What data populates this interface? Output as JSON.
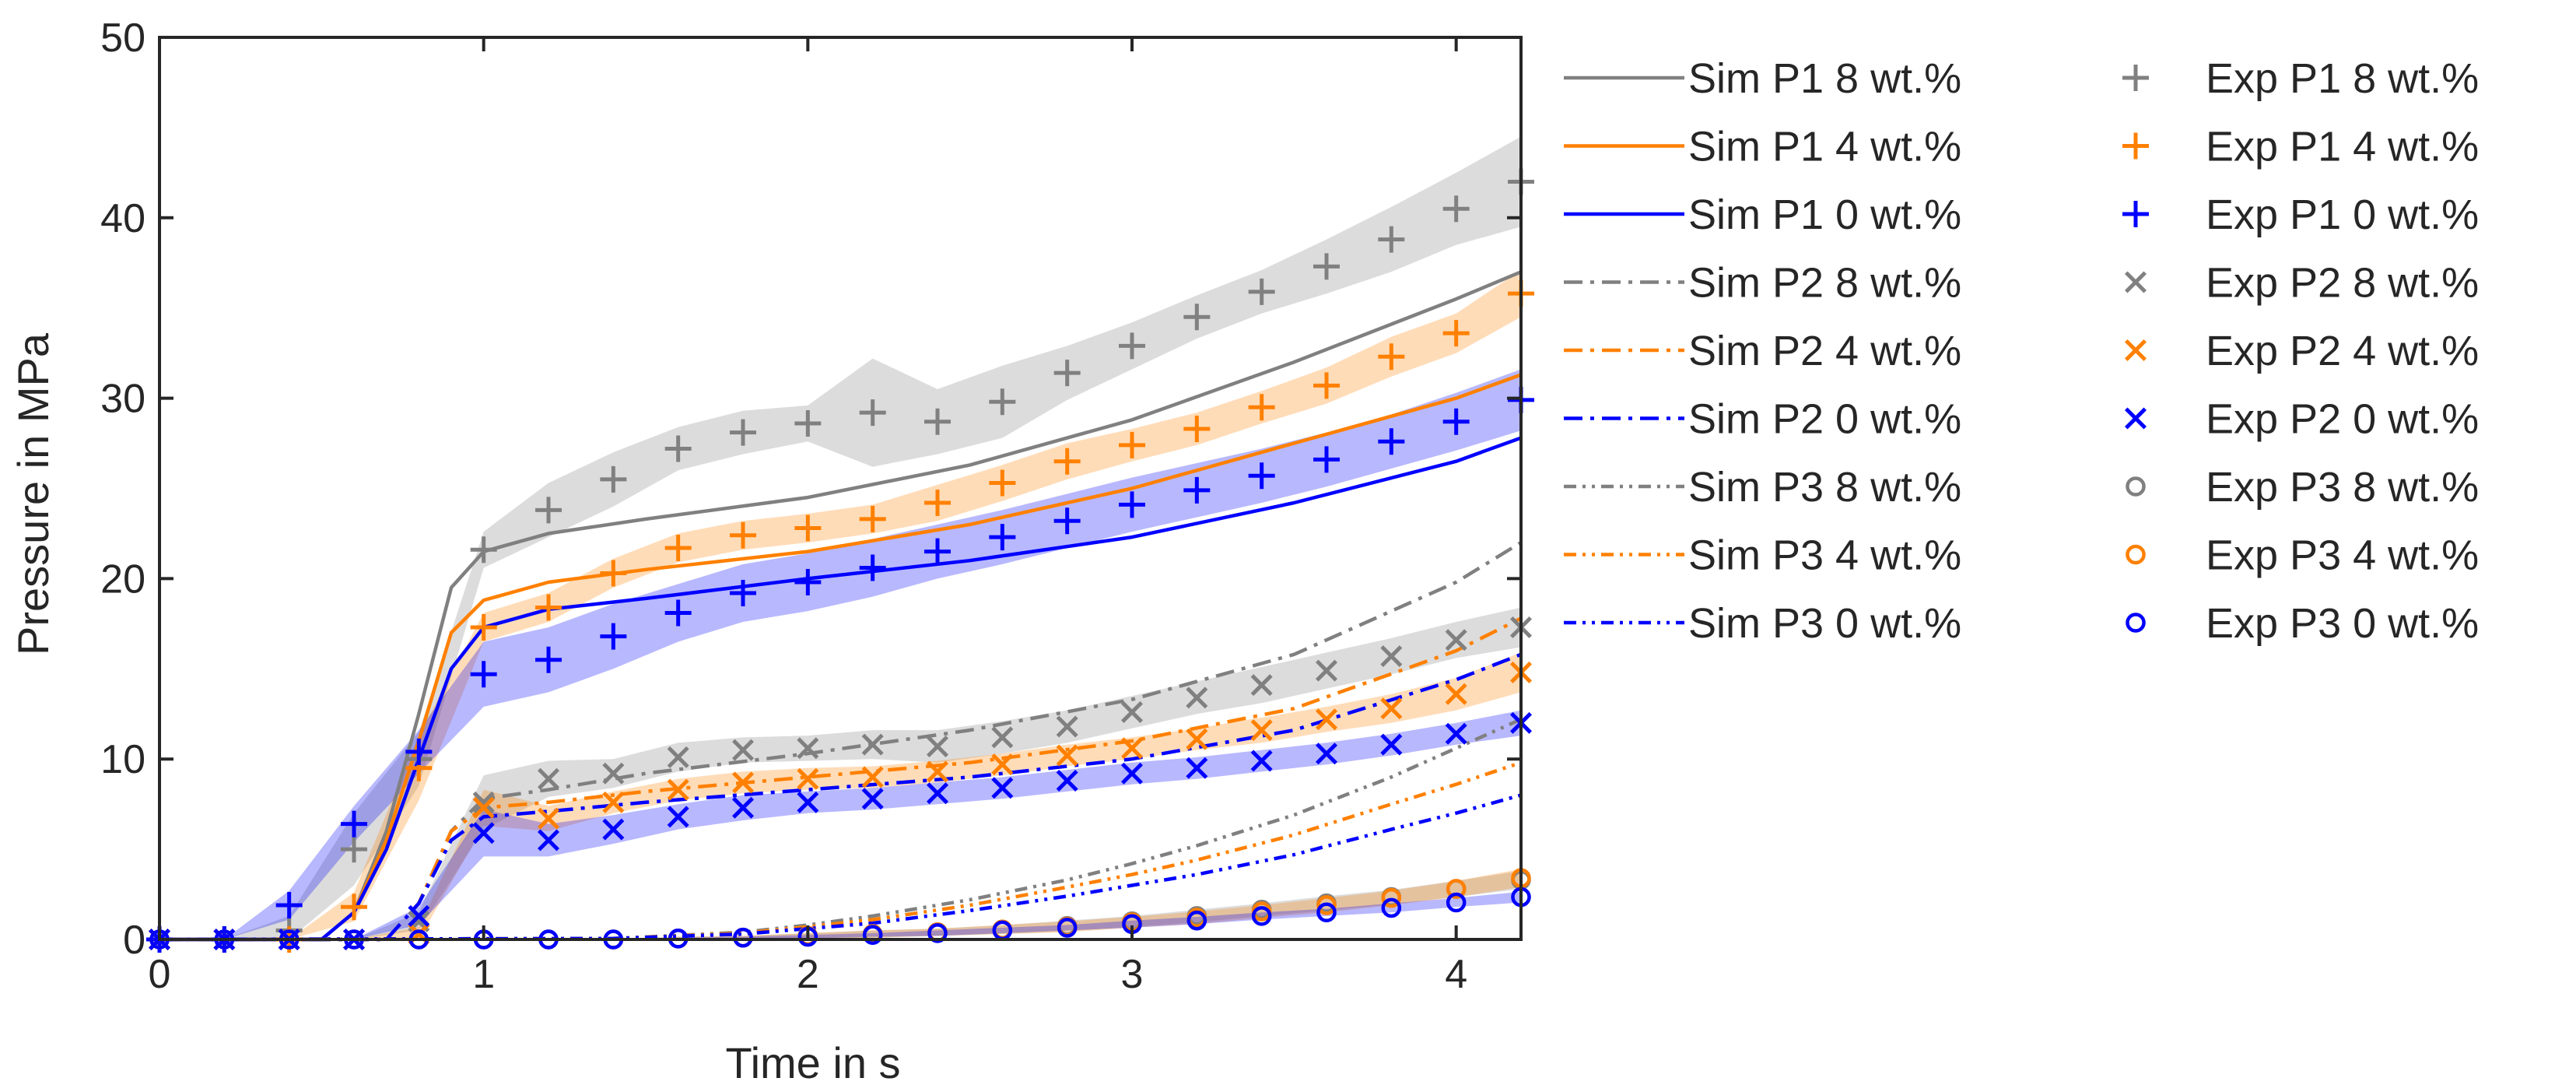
{
  "chart_data": {
    "type": "line",
    "xlabel": "Time in s",
    "ylabel": "Pressure in MPa",
    "xlim": [
      0,
      4.2
    ],
    "ylim": [
      0,
      50
    ],
    "xticks": [
      0,
      1,
      2,
      3,
      4
    ],
    "yticks": [
      0,
      10,
      20,
      30,
      40,
      50
    ],
    "grid": false,
    "legend_position": "outside-right",
    "colors": {
      "8": "#808080",
      "4": "#ff8000",
      "0": "#0000ff"
    },
    "simulation": [
      {
        "name": "Sim P1 8 wt.%",
        "color": "8",
        "dash": "solid",
        "x": [
          0,
          0.5,
          0.6,
          0.7,
          0.8,
          0.9,
          1.0,
          1.2,
          1.5,
          2.0,
          2.5,
          3.0,
          3.5,
          4.0,
          4.2
        ],
        "y": [
          0,
          0,
          1.5,
          6,
          12.5,
          19.5,
          21.5,
          22.5,
          23.3,
          24.5,
          26.3,
          28.8,
          32.0,
          35.5,
          37.0
        ]
      },
      {
        "name": "Sim P1 4 wt.%",
        "color": "4",
        "dash": "solid",
        "x": [
          0,
          0.5,
          0.6,
          0.7,
          0.8,
          0.9,
          1.0,
          1.2,
          1.5,
          2.0,
          2.5,
          3.0,
          3.5,
          4.0,
          4.2
        ],
        "y": [
          0,
          0,
          1.5,
          5.5,
          11,
          17,
          18.8,
          19.8,
          20.5,
          21.5,
          23.0,
          25.0,
          27.5,
          30.0,
          31.3
        ]
      },
      {
        "name": "Sim P1 0 wt.%",
        "color": "0",
        "dash": "solid",
        "x": [
          0,
          0.5,
          0.6,
          0.7,
          0.8,
          0.9,
          1.0,
          1.2,
          1.5,
          2.0,
          2.5,
          3.0,
          3.5,
          4.0,
          4.2
        ],
        "y": [
          0,
          0,
          1.5,
          5,
          10,
          15,
          17.3,
          18.3,
          18.9,
          20.0,
          21.0,
          22.3,
          24.2,
          26.5,
          27.8
        ]
      },
      {
        "name": "Sim P2 8 wt.%",
        "color": "8",
        "dash": "dashdot",
        "x": [
          0,
          0.7,
          0.8,
          0.9,
          1.0,
          1.2,
          1.5,
          2.0,
          2.5,
          3.0,
          3.5,
          4.0,
          4.2
        ],
        "y": [
          0,
          0,
          2,
          6,
          7.8,
          8.3,
          9.2,
          10.3,
          11.6,
          13.3,
          15.8,
          19.8,
          22.0
        ]
      },
      {
        "name": "Sim P2 4 wt.%",
        "color": "4",
        "dash": "dashdot",
        "x": [
          0,
          0.7,
          0.8,
          0.9,
          1.0,
          1.2,
          1.5,
          2.0,
          2.5,
          3.0,
          3.5,
          4.0,
          4.2
        ],
        "y": [
          0,
          0,
          2,
          6,
          7.3,
          7.6,
          8.2,
          9.0,
          9.8,
          11.0,
          12.8,
          16.0,
          17.8
        ]
      },
      {
        "name": "Sim P2 0 wt.%",
        "color": "0",
        "dash": "dashdot",
        "x": [
          0,
          0.7,
          0.8,
          0.9,
          1.0,
          1.2,
          1.5,
          2.0,
          2.5,
          3.0,
          3.5,
          4.0,
          4.2
        ],
        "y": [
          0,
          0,
          2,
          5.5,
          6.8,
          7.1,
          7.6,
          8.3,
          9.0,
          10.0,
          11.6,
          14.4,
          15.8
        ]
      },
      {
        "name": "Sim P3 8 wt.%",
        "color": "8",
        "dash": "dashdotdot",
        "x": [
          0,
          1.4,
          1.8,
          2.0,
          2.2,
          2.5,
          2.8,
          3.0,
          3.2,
          3.5,
          3.8,
          4.0,
          4.2
        ],
        "y": [
          0,
          0.05,
          0.4,
          0.8,
          1.3,
          2.2,
          3.3,
          4.2,
          5.2,
          6.9,
          9.0,
          10.6,
          12.2
        ]
      },
      {
        "name": "Sim P3 4 wt.%",
        "color": "4",
        "dash": "dashdotdot",
        "x": [
          0,
          1.4,
          1.8,
          2.0,
          2.2,
          2.5,
          2.8,
          3.0,
          3.2,
          3.5,
          3.8,
          4.0,
          4.2
        ],
        "y": [
          0,
          0.05,
          0.35,
          0.7,
          1.1,
          1.9,
          2.9,
          3.6,
          4.4,
          5.8,
          7.5,
          8.6,
          9.8
        ]
      },
      {
        "name": "Sim P3 0 wt.%",
        "color": "0",
        "dash": "dashdotdot",
        "x": [
          0,
          1.4,
          1.8,
          2.0,
          2.2,
          2.5,
          2.8,
          3.0,
          3.2,
          3.5,
          3.8,
          4.0,
          4.2
        ],
        "y": [
          0,
          0.05,
          0.3,
          0.6,
          0.9,
          1.6,
          2.4,
          3.0,
          3.6,
          4.7,
          6.1,
          7.0,
          8.0
        ]
      }
    ],
    "experiment": [
      {
        "name": "Exp P1 8 wt.%",
        "color": "8",
        "marker": "plus",
        "x": [
          0,
          0.2,
          0.4,
          0.6,
          0.8,
          1.0,
          1.2,
          1.4,
          1.6,
          1.8,
          2.0,
          2.2,
          2.4,
          2.6,
          2.8,
          3.0,
          3.2,
          3.4,
          3.6,
          3.8,
          4.0,
          4.2
        ],
        "y": [
          0,
          0,
          0.5,
          5.0,
          10.0,
          21.6,
          23.8,
          25.5,
          27.2,
          28.1,
          28.6,
          29.2,
          28.7,
          29.8,
          31.4,
          32.9,
          34.5,
          35.9,
          37.3,
          38.8,
          40.5,
          42.0
        ],
        "band": [
          0,
          0,
          0.8,
          2.0,
          1.5,
          1.0,
          1.5,
          1.5,
          1.2,
          1.2,
          1.0,
          3.0,
          1.8,
          2.0,
          1.5,
          1.3,
          1.2,
          1.2,
          1.5,
          1.8,
          2.0,
          2.5
        ]
      },
      {
        "name": "Exp P1 4 wt.%",
        "color": "4",
        "marker": "plus",
        "x": [
          0,
          0.2,
          0.4,
          0.6,
          0.8,
          1.0,
          1.2,
          1.4,
          1.6,
          1.8,
          2.0,
          2.2,
          2.4,
          2.6,
          2.8,
          3.0,
          3.2,
          3.4,
          3.6,
          3.8,
          4.0,
          4.2
        ],
        "y": [
          0,
          0,
          0,
          1.8,
          9.5,
          17.3,
          18.4,
          20.3,
          21.7,
          22.4,
          22.8,
          23.3,
          24.2,
          25.3,
          26.5,
          27.4,
          28.3,
          29.5,
          30.7,
          32.3,
          33.6,
          35.8
        ],
        "band": [
          0,
          0,
          0,
          0.8,
          1.8,
          0.8,
          0.8,
          0.8,
          0.8,
          0.8,
          0.8,
          0.8,
          1.0,
          1.0,
          1.0,
          0.9,
          0.9,
          0.9,
          1.0,
          1.1,
          1.1,
          1.3
        ]
      },
      {
        "name": "Exp P1 0 wt.%",
        "color": "0",
        "marker": "plus",
        "x": [
          0,
          0.2,
          0.4,
          0.6,
          0.8,
          1.0,
          1.2,
          1.4,
          1.6,
          1.8,
          2.0,
          2.2,
          2.4,
          2.6,
          2.8,
          3.0,
          3.2,
          3.4,
          3.6,
          3.8,
          4.0,
          4.2
        ],
        "y": [
          0,
          0,
          1.9,
          6.4,
          10.4,
          14.7,
          15.5,
          16.8,
          18.1,
          19.2,
          19.8,
          20.6,
          21.5,
          22.3,
          23.2,
          24.1,
          24.9,
          25.7,
          26.6,
          27.6,
          28.7,
          29.9
        ],
        "band": [
          0,
          0,
          0.8,
          1.0,
          1.2,
          1.8,
          1.8,
          1.8,
          1.6,
          1.6,
          1.6,
          1.6,
          1.5,
          1.5,
          1.5,
          1.5,
          1.5,
          1.5,
          1.5,
          1.5,
          1.6,
          1.7
        ]
      },
      {
        "name": "Exp P2 8 wt.%",
        "color": "8",
        "marker": "cross",
        "x": [
          0,
          0.2,
          0.4,
          0.6,
          0.8,
          1.0,
          1.2,
          1.4,
          1.6,
          1.8,
          2.0,
          2.2,
          2.4,
          2.6,
          2.8,
          3.0,
          3.2,
          3.4,
          3.6,
          3.8,
          4.0,
          4.2
        ],
        "y": [
          0,
          0,
          0,
          0,
          1.0,
          7.6,
          8.9,
          9.2,
          10.1,
          10.5,
          10.6,
          10.8,
          10.7,
          11.2,
          11.8,
          12.6,
          13.4,
          14.1,
          14.9,
          15.7,
          16.6,
          17.3
        ],
        "band": [
          0,
          0,
          0,
          0,
          0.5,
          1.5,
          1.0,
          0.8,
          0.8,
          0.7,
          0.7,
          0.8,
          0.9,
          0.9,
          0.9,
          0.9,
          0.9,
          1.0,
          1.0,
          1.0,
          1.0,
          1.1
        ]
      },
      {
        "name": "Exp P2 4 wt.%",
        "color": "4",
        "marker": "cross",
        "x": [
          0,
          0.2,
          0.4,
          0.6,
          0.8,
          1.0,
          1.2,
          1.4,
          1.6,
          1.8,
          2.0,
          2.2,
          2.4,
          2.6,
          2.8,
          3.0,
          3.2,
          3.4,
          3.6,
          3.8,
          4.0,
          4.2
        ],
        "y": [
          0,
          0,
          0,
          0,
          0.3,
          7.3,
          6.7,
          7.6,
          8.3,
          8.7,
          8.9,
          9.0,
          9.3,
          9.7,
          10.2,
          10.6,
          11.1,
          11.6,
          12.2,
          12.8,
          13.6,
          14.8
        ],
        "band": [
          0,
          0,
          0,
          0,
          0.4,
          1.0,
          0.7,
          0.6,
          0.6,
          0.6,
          0.6,
          0.6,
          0.6,
          0.6,
          0.6,
          0.6,
          0.6,
          0.7,
          0.7,
          0.8,
          0.9,
          1.1
        ]
      },
      {
        "name": "Exp P2 0 wt.%",
        "color": "0",
        "marker": "cross",
        "x": [
          0,
          0.2,
          0.4,
          0.6,
          0.8,
          1.0,
          1.2,
          1.4,
          1.6,
          1.8,
          2.0,
          2.2,
          2.4,
          2.6,
          2.8,
          3.0,
          3.2,
          3.4,
          3.6,
          3.8,
          4.0,
          4.2
        ],
        "y": [
          0,
          0,
          0,
          0,
          1.3,
          5.9,
          5.5,
          6.1,
          6.8,
          7.3,
          7.6,
          7.8,
          8.1,
          8.4,
          8.8,
          9.2,
          9.5,
          9.9,
          10.3,
          10.8,
          11.4,
          12.0
        ],
        "band": [
          0,
          0,
          0,
          0,
          0.5,
          1.3,
          0.9,
          0.8,
          0.7,
          0.7,
          0.6,
          0.6,
          0.6,
          0.6,
          0.6,
          0.6,
          0.6,
          0.6,
          0.6,
          0.6,
          0.6,
          0.7
        ]
      },
      {
        "name": "Exp P3 8 wt.%",
        "color": "8",
        "marker": "circle",
        "x": [
          0,
          0.2,
          0.4,
          0.6,
          0.8,
          1.0,
          1.2,
          1.4,
          1.6,
          1.8,
          2.0,
          2.2,
          2.4,
          2.6,
          2.8,
          3.0,
          3.2,
          3.4,
          3.6,
          3.8,
          4.0,
          4.2
        ],
        "y": [
          0,
          0,
          0,
          0,
          0,
          0,
          0,
          0,
          0.05,
          0.1,
          0.2,
          0.3,
          0.4,
          0.55,
          0.75,
          1.0,
          1.3,
          1.65,
          2.0,
          2.35,
          2.8,
          3.3
        ],
        "band": [
          0,
          0,
          0,
          0,
          0,
          0,
          0,
          0,
          0.1,
          0.1,
          0.15,
          0.2,
          0.2,
          0.25,
          0.3,
          0.3,
          0.35,
          0.35,
          0.4,
          0.4,
          0.45,
          0.5
        ]
      },
      {
        "name": "Exp P3 4 wt.%",
        "color": "4",
        "marker": "circle",
        "x": [
          0,
          0.2,
          0.4,
          0.6,
          0.8,
          1.0,
          1.2,
          1.4,
          1.6,
          1.8,
          2.0,
          2.2,
          2.4,
          2.6,
          2.8,
          3.0,
          3.2,
          3.4,
          3.6,
          3.8,
          4.0,
          4.2
        ],
        "y": [
          0,
          0,
          0,
          0,
          0,
          0,
          0,
          0,
          0.05,
          0.1,
          0.2,
          0.3,
          0.4,
          0.55,
          0.7,
          0.95,
          1.2,
          1.55,
          1.9,
          2.3,
          2.8,
          3.4
        ],
        "band": [
          0,
          0,
          0,
          0,
          0,
          0,
          0,
          0,
          0.1,
          0.1,
          0.15,
          0.2,
          0.2,
          0.25,
          0.3,
          0.3,
          0.35,
          0.35,
          0.4,
          0.4,
          0.45,
          0.5
        ]
      },
      {
        "name": "Exp P3 0 wt.%",
        "color": "0",
        "marker": "circle",
        "x": [
          0,
          0.2,
          0.4,
          0.6,
          0.8,
          1.0,
          1.2,
          1.4,
          1.6,
          1.8,
          2.0,
          2.2,
          2.4,
          2.6,
          2.8,
          3.0,
          3.2,
          3.4,
          3.6,
          3.8,
          4.0,
          4.2
        ],
        "y": [
          0,
          0,
          0,
          0,
          0,
          0,
          0,
          0,
          0.05,
          0.1,
          0.15,
          0.25,
          0.35,
          0.5,
          0.65,
          0.85,
          1.05,
          1.3,
          1.5,
          1.75,
          2.05,
          2.35
        ],
        "band": [
          0,
          0,
          0,
          0,
          0,
          0,
          0,
          0,
          0.05,
          0.05,
          0.1,
          0.1,
          0.15,
          0.15,
          0.15,
          0.2,
          0.2,
          0.2,
          0.2,
          0.25,
          0.25,
          0.3
        ]
      }
    ]
  }
}
